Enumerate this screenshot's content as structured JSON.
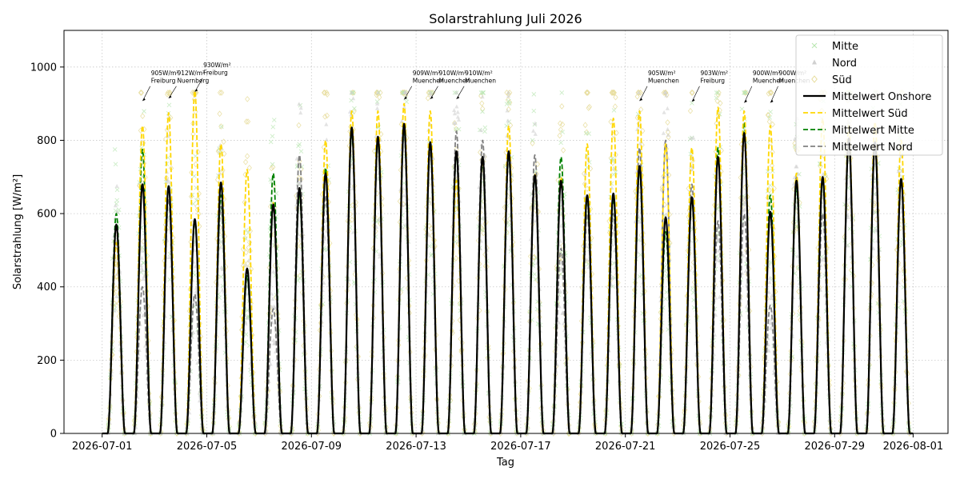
{
  "chart_data": {
    "type": "line",
    "title": "Solarstrahlung Juli 2026",
    "xlabel": "Tag",
    "ylabel": "Solarstrahlung [W/m²]",
    "xlim": [
      "2026-06-29T13:00",
      "2026-08-02T08:00"
    ],
    "ylim": [
      0,
      1100
    ],
    "x_ticks": [
      "2026-07-01",
      "2026-07-05",
      "2026-07-09",
      "2026-07-13",
      "2026-07-17",
      "2026-07-21",
      "2026-07-25",
      "2026-07-29",
      "2026-08-01"
    ],
    "y_ticks": [
      0,
      200,
      400,
      600,
      800,
      1000
    ],
    "grid": true,
    "legend_position": "top-right",
    "daylight_hours": [
      5,
      21
    ],
    "days": [
      "2026-07-01",
      "2026-07-02",
      "2026-07-03",
      "2026-07-04",
      "2026-07-05",
      "2026-07-06",
      "2026-07-07",
      "2026-07-08",
      "2026-07-09",
      "2026-07-10",
      "2026-07-11",
      "2026-07-12",
      "2026-07-13",
      "2026-07-14",
      "2026-07-15",
      "2026-07-16",
      "2026-07-17",
      "2026-07-18",
      "2026-07-19",
      "2026-07-20",
      "2026-07-21",
      "2026-07-22",
      "2026-07-23",
      "2026-07-24",
      "2026-07-25",
      "2026-07-26",
      "2026-07-27",
      "2026-07-28",
      "2026-07-29",
      "2026-07-30",
      "2026-07-31"
    ],
    "series": [
      {
        "name": "Mitte",
        "kind": "scatter",
        "marker": "x",
        "color": "#b8e6b0"
      },
      {
        "name": "Nord",
        "kind": "scatter",
        "marker": "triangle",
        "color": "#d0d0d0"
      },
      {
        "name": "Süd",
        "kind": "scatter",
        "marker": "diamond",
        "color": "#e6dc9a"
      },
      {
        "name": "Mittelwert Onshore",
        "kind": "line",
        "style": "solid",
        "color": "#000000",
        "daily_peak": [
          570,
          680,
          675,
          585,
          685,
          450,
          625,
          670,
          710,
          835,
          810,
          845,
          795,
          770,
          755,
          770,
          705,
          690,
          650,
          655,
          730,
          590,
          645,
          755,
          820,
          605,
          690,
          700,
          805,
          795,
          695
        ]
      },
      {
        "name": "Mittelwert Süd",
        "kind": "line",
        "style": "dashed",
        "color": "#ffd700",
        "daily_peak": [
          520,
          840,
          875,
          935,
          790,
          720,
          630,
          670,
          800,
          880,
          880,
          900,
          880,
          690,
          745,
          840,
          710,
          700,
          790,
          860,
          880,
          790,
          780,
          890,
          880,
          840,
          710,
          860,
          840,
          850,
          800
        ]
      },
      {
        "name": "Mittelwert Mitte",
        "kind": "line",
        "style": "dashed",
        "color": "#008000",
        "daily_peak": [
          600,
          775,
          670,
          580,
          650,
          430,
          710,
          650,
          725,
          820,
          800,
          830,
          790,
          760,
          740,
          760,
          700,
          755,
          640,
          640,
          720,
          550,
          640,
          780,
          850,
          650,
          670,
          690,
          800,
          790,
          690
        ]
      },
      {
        "name": "Mittelwert Nord",
        "kind": "line",
        "style": "dashed",
        "color": "#808080",
        "daily_peak": [
          520,
          400,
          640,
          380,
          620,
          420,
          340,
          760,
          650,
          820,
          790,
          820,
          770,
          825,
          800,
          750,
          760,
          505,
          600,
          600,
          780,
          800,
          680,
          580,
          600,
          350,
          700,
          600,
          790,
          780,
          690
        ]
      }
    ],
    "annotations": [
      {
        "value": "905W/m²",
        "location": "Freiburg",
        "x": "2026-07-02T12:00",
        "y": 905
      },
      {
        "value": "912W/m²",
        "location": "Nuernberg",
        "x": "2026-07-03T12:00",
        "y": 912
      },
      {
        "value": "930W/m²",
        "location": "Freiburg",
        "x": "2026-07-04T12:00",
        "y": 930
      },
      {
        "value": "909W/m²",
        "location": "Muenchen",
        "x": "2026-07-12T12:00",
        "y": 909
      },
      {
        "value": "910W/m²",
        "location": "Muenchen",
        "x": "2026-07-13T12:00",
        "y": 910
      },
      {
        "value": "910W/m²",
        "location": "Muenchen",
        "x": "2026-07-14T12:00",
        "y": 910
      },
      {
        "value": "905W/m²",
        "location": "Muenchen",
        "x": "2026-07-21T12:00",
        "y": 905
      },
      {
        "value": "903W/m²",
        "location": "Freiburg",
        "x": "2026-07-23T12:00",
        "y": 903
      },
      {
        "value": "900W/m²",
        "location": "Muenchen",
        "x": "2026-07-25T12:00",
        "y": 900
      },
      {
        "value": "900W/m²",
        "location": "Muenchen",
        "x": "2026-07-26T12:00",
        "y": 900
      }
    ]
  }
}
